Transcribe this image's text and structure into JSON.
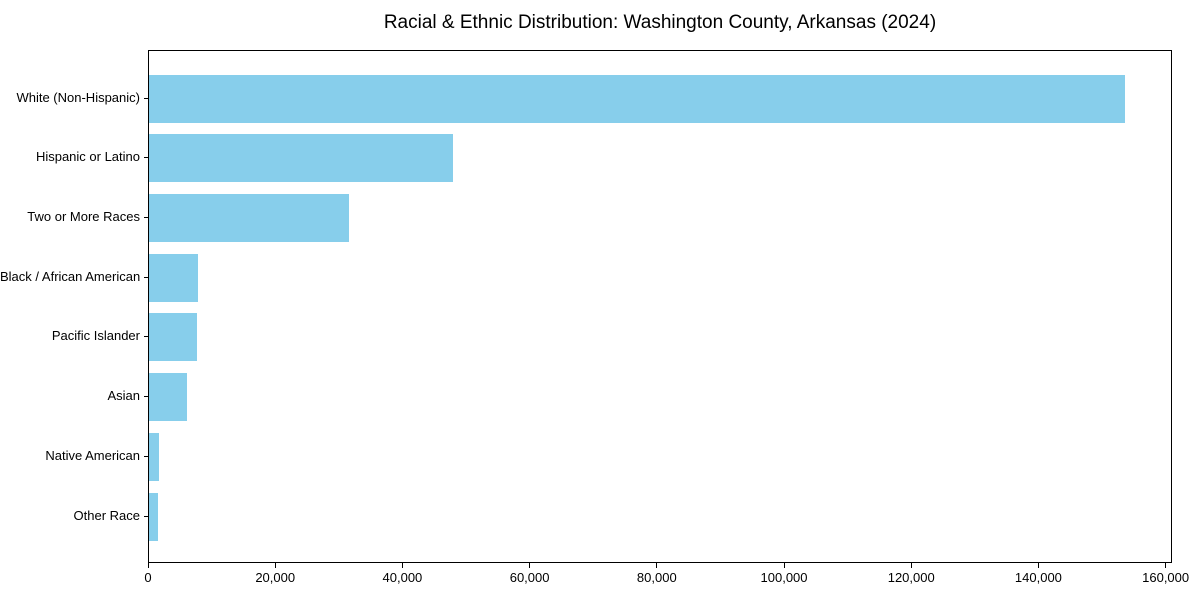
{
  "chart_data": {
    "type": "bar",
    "orientation": "horizontal",
    "title": "Racial & Ethnic Distribution: Washington County, Arkansas (2024)",
    "categories": [
      "White (Non-Hispanic)",
      "Hispanic or Latino",
      "Two or More Races",
      "Black / African American",
      "Pacific Islander",
      "Asian",
      "Native American",
      "Other Race"
    ],
    "values": [
      153500,
      47800,
      31500,
      7700,
      7500,
      6000,
      1600,
      1400
    ],
    "xlabel": "",
    "ylabel": "",
    "xlim": [
      0,
      161000
    ],
    "xticks": [
      0,
      20000,
      40000,
      60000,
      80000,
      100000,
      120000,
      140000,
      160000
    ],
    "xtick_labels": [
      "0",
      "20,000",
      "40,000",
      "60,000",
      "80,000",
      "100,000",
      "120,000",
      "140,000",
      "160,000"
    ],
    "bar_color": "#87CEEB",
    "background_color": "#ffffff",
    "frame_color": "#000000",
    "grid": false,
    "legend": null
  }
}
